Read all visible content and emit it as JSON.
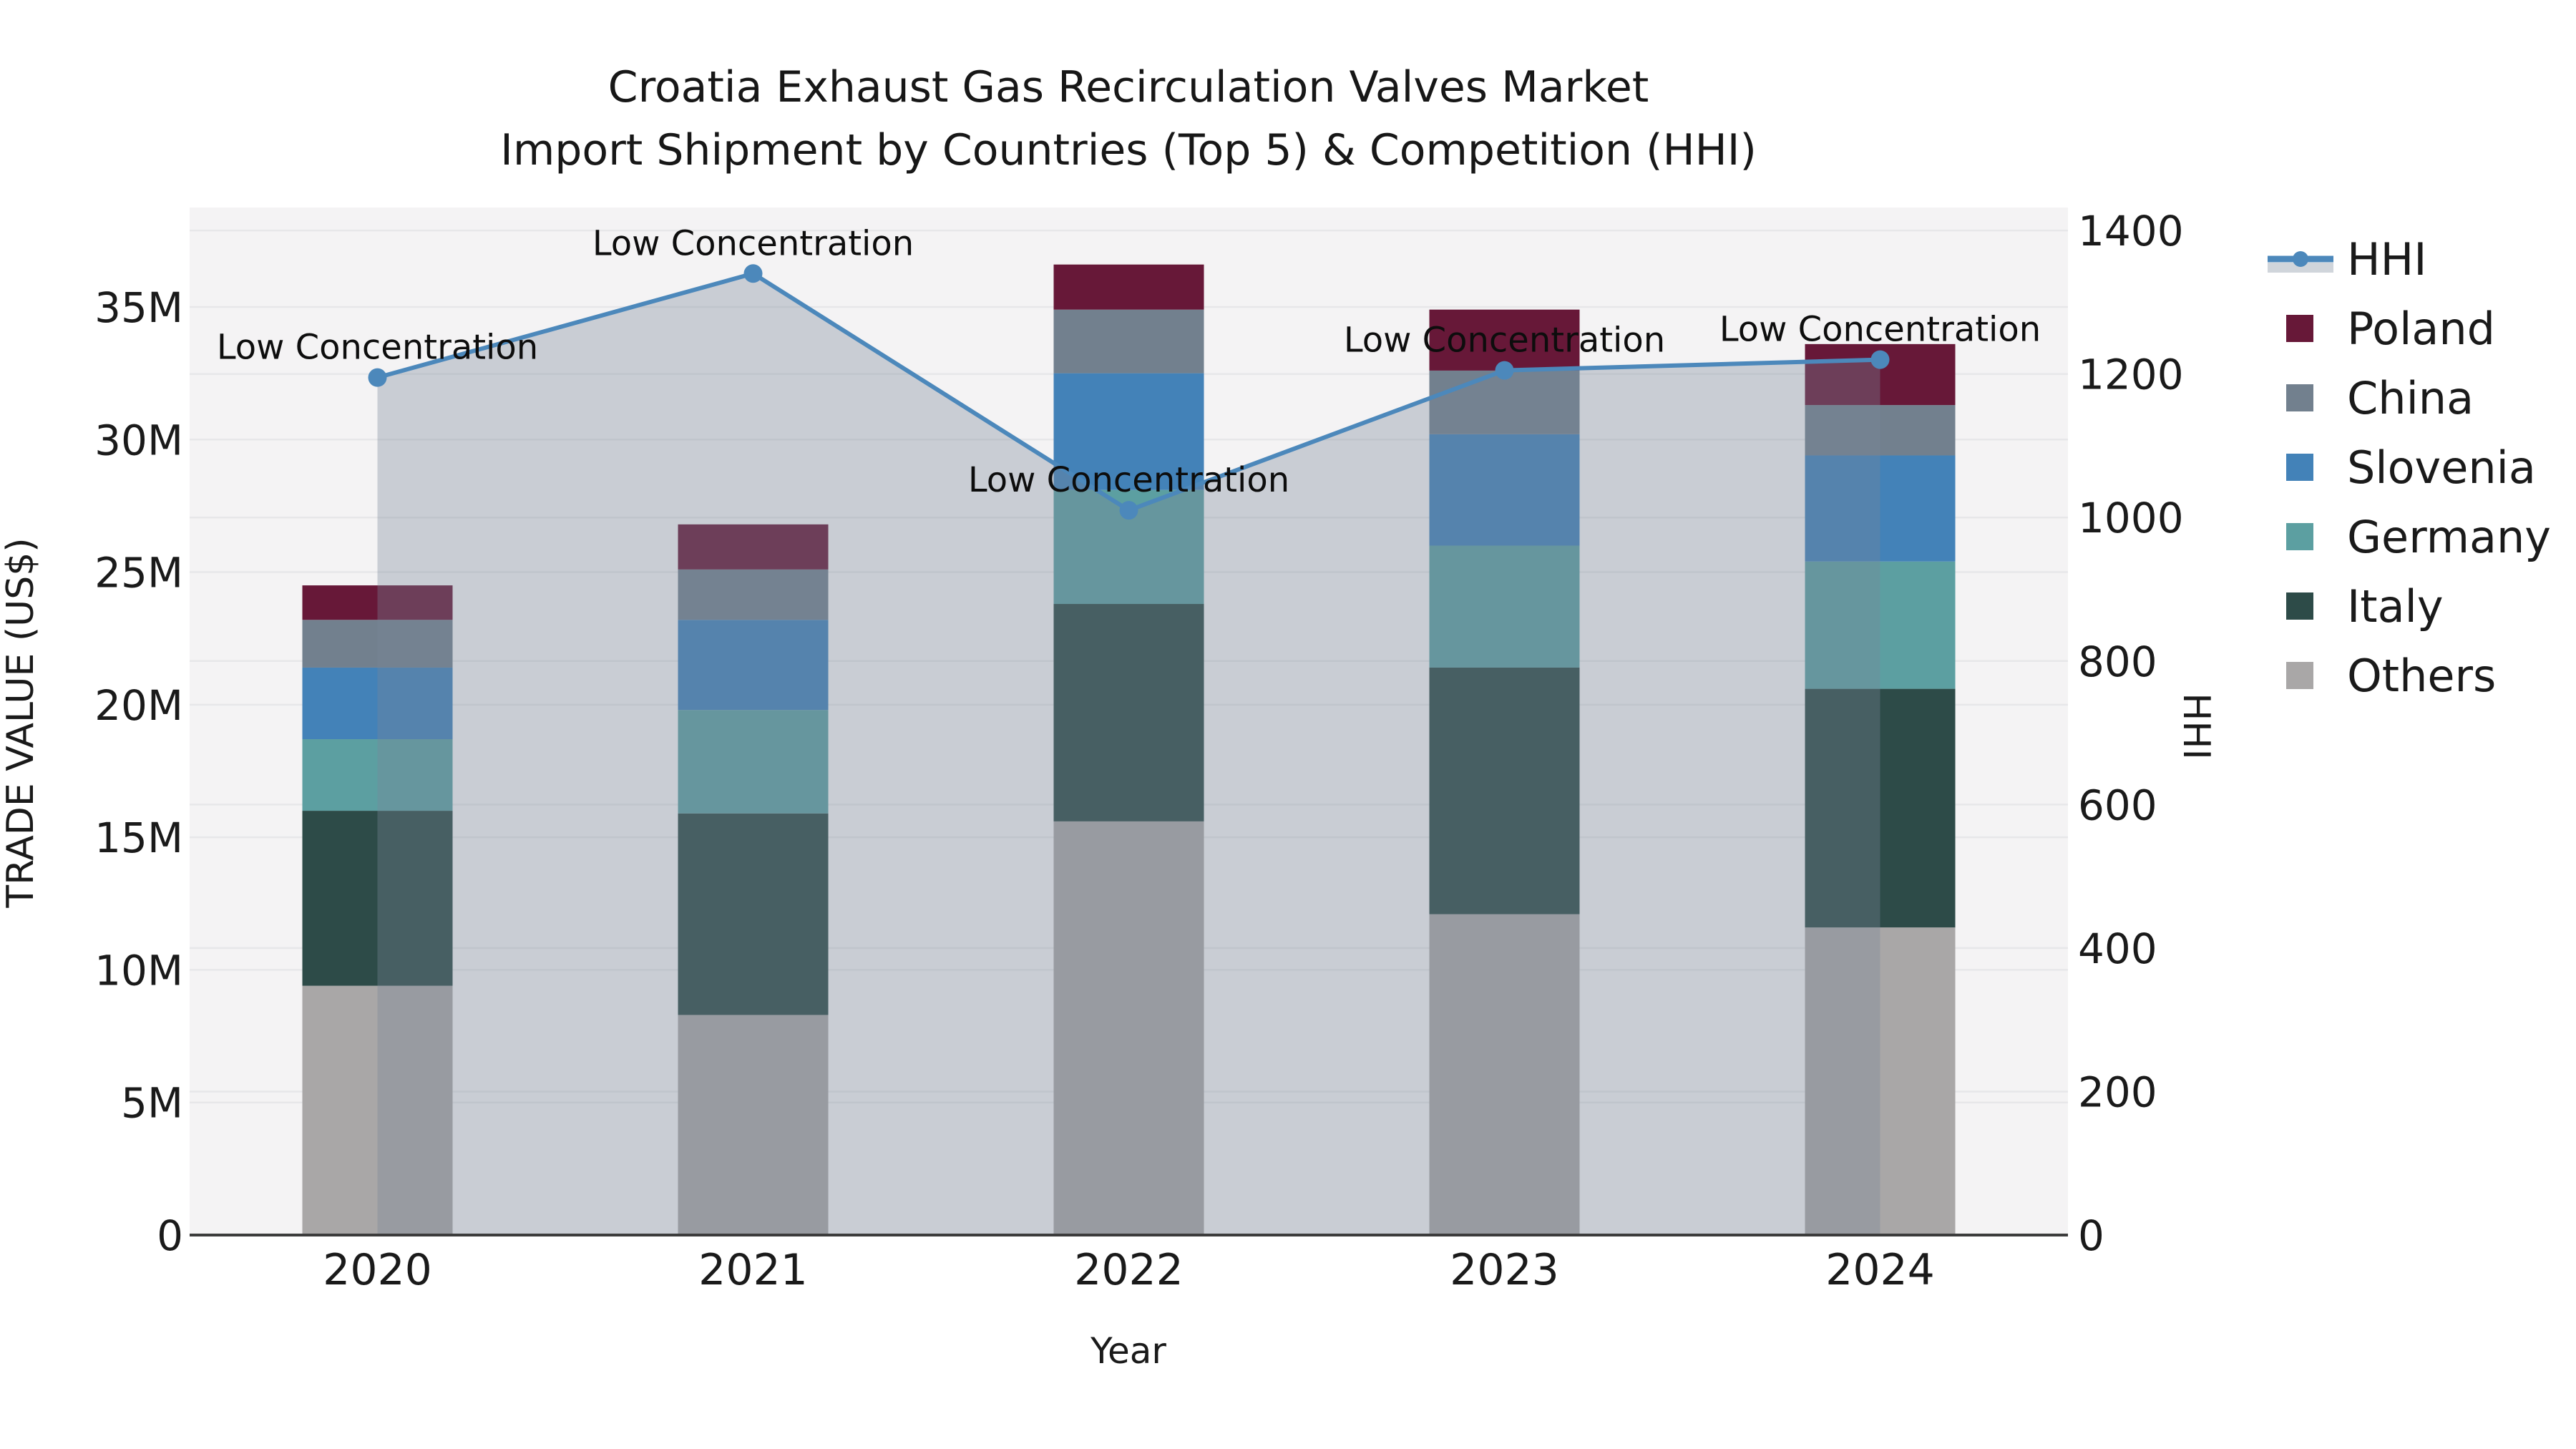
{
  "title": {
    "line1": "Croatia Exhaust Gas Recirculation Valves Market",
    "line2": "Import Shipment by Countries (Top 5) & Competition (HHI)"
  },
  "axes": {
    "x_label": "Year",
    "y_left_label": "TRADE VALUE (US$)",
    "y_right_label": "HHI",
    "y_left_ticks": [
      "0",
      "5M",
      "10M",
      "15M",
      "20M",
      "25M",
      "30M",
      "35M"
    ],
    "y_left_tick_values": [
      0,
      5,
      10,
      15,
      20,
      25,
      30,
      35
    ],
    "y_right_ticks": [
      "0",
      "200",
      "400",
      "600",
      "800",
      "1000",
      "1200",
      "1400"
    ],
    "y_right_tick_values": [
      0,
      200,
      400,
      600,
      800,
      1000,
      1200,
      1400
    ]
  },
  "chart_data": {
    "type": "bar",
    "subtype": "stacked-bars-with-line",
    "title": "Croatia Exhaust Gas Recirculation Valves Market — Import Shipment by Countries (Top 5) & Competition (HHI)",
    "xlabel": "Year",
    "ylabel": "TRADE VALUE (US$)",
    "ylabel_right": "HHI",
    "categories": [
      "2020",
      "2021",
      "2022",
      "2023",
      "2024"
    ],
    "values_unit": "million US$",
    "series": [
      {
        "name": "Others",
        "color": "#a9a7a7",
        "values": [
          9.4,
          8.3,
          15.6,
          12.1,
          11.6
        ]
      },
      {
        "name": "Italy",
        "color": "#2d4b48",
        "values": [
          6.6,
          7.6,
          8.2,
          9.3,
          9.0
        ]
      },
      {
        "name": "Germany",
        "color": "#5c9fa1",
        "values": [
          2.7,
          3.9,
          4.3,
          4.6,
          4.8
        ]
      },
      {
        "name": "Slovenia",
        "color": "#4382b8",
        "values": [
          2.7,
          3.4,
          4.4,
          4.2,
          4.0
        ]
      },
      {
        "name": "China",
        "color": "#72808e",
        "values": [
          1.8,
          1.9,
          2.4,
          2.4,
          1.9
        ]
      },
      {
        "name": "Poland",
        "color": "#671838",
        "values": [
          1.3,
          1.7,
          1.7,
          2.3,
          2.3
        ]
      }
    ],
    "stack_totals": [
      24.5,
      26.8,
      36.6,
      34.9,
      33.6
    ],
    "line_series": {
      "name": "HHI",
      "axis": "right",
      "color": "#4c88bb",
      "area_fill": "rgba(119,136,153,0.35)",
      "values": [
        1195,
        1340,
        1010,
        1205,
        1220
      ]
    },
    "annotations": [
      "Low Concentration",
      "Low Concentration",
      "Low Concentration",
      "Low Concentration",
      "Low Concentration"
    ],
    "ylim_left": [
      0,
      38.75
    ],
    "ylim_right": [
      0,
      1432
    ],
    "grid": true,
    "legend_position": "right",
    "plot_background": "#f4f3f4",
    "grid_color": "#e7e7e9",
    "spine_color": "#3c3c3c"
  },
  "legend": {
    "items": [
      {
        "label": "HHI",
        "type": "line"
      },
      {
        "label": "Poland",
        "type": "swatch",
        "color": "#671838"
      },
      {
        "label": "China",
        "type": "swatch",
        "color": "#72808e"
      },
      {
        "label": "Slovenia",
        "type": "swatch",
        "color": "#4382b8"
      },
      {
        "label": "Germany",
        "type": "swatch",
        "color": "#5c9fa1"
      },
      {
        "label": "Italy",
        "type": "swatch",
        "color": "#2d4b48"
      },
      {
        "label": "Others",
        "type": "swatch",
        "color": "#a9a7a7"
      }
    ]
  }
}
